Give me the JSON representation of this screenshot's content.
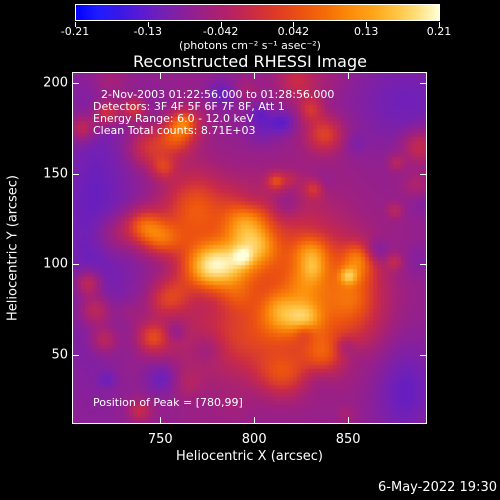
{
  "colorbar": {
    "tick_labels": [
      "-0.21",
      "-0.13",
      "-0.042",
      "0.042",
      "0.13",
      "0.21"
    ],
    "unit": "(photons cm⁻² s⁻¹ asec⁻²)",
    "range": [
      -0.21,
      0.21
    ]
  },
  "title": "Reconstructed RHESSI Image",
  "info": {
    "time_range": "2-Nov-2003 01:22:56.000 to 01:28:56.000",
    "detectors": "Detectors: 3F 4F 5F 6F 7F 8F, Att 1",
    "energy": "Energy Range: 6.0 - 12.0 keV",
    "clean": "Clean     Total counts: 8.71E+03",
    "peak": "Position of Peak = [780,99]"
  },
  "axes": {
    "xlabel": "Heliocentric X (arcsec)",
    "ylabel": "Heliocentric Y (arcsec)",
    "xticks": [
      "750",
      "800",
      "850"
    ],
    "yticks": [
      "200",
      "150",
      "100",
      "50"
    ],
    "xtick_values": [
      750,
      800,
      850
    ],
    "ytick_values": [
      200,
      150,
      100,
      50
    ],
    "xrange": [
      703,
      892
    ],
    "yrange": [
      12,
      206
    ]
  },
  "timestamp": "6-May-2022 19:30"
}
